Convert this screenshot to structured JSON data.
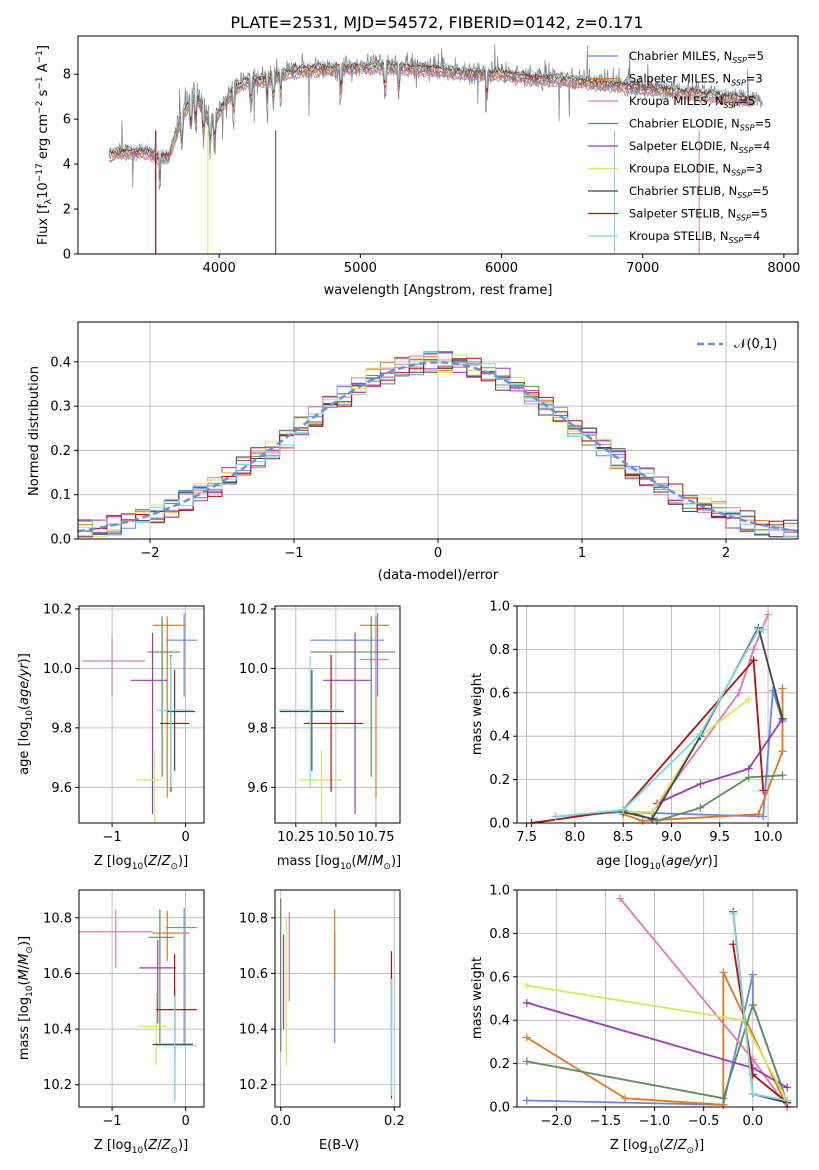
{
  "figure_title": "PLATE=2531, MJD=54572, FIBERID=0142, z=0.171",
  "colors": {
    "observed": "#808080",
    "series": [
      "#6688dd",
      "#dd7722",
      "#e07ab0",
      "#5e8a5e",
      "#9b3ab5",
      "#d7e65a",
      "#444444",
      "#aa1111",
      "#7fd8e0"
    ]
  },
  "chart_data": [
    {
      "id": "spectrum",
      "type": "line",
      "title": "PLATE=2531, MJD=54572, FIBERID=0142, z=0.171",
      "xlabel": "wavelength [Angstrom, rest frame]",
      "ylabel": "Flux [f_λ 10^-17 erg cm^-2 s^-1 A^-1]",
      "xlim": [
        3000,
        8100
      ],
      "ylim": [
        0,
        9.7
      ],
      "xticks": [
        4000,
        5000,
        6000,
        7000,
        8000
      ],
      "yticks": [
        0,
        2,
        4,
        6,
        8
      ],
      "grid": false,
      "legend_position": "right",
      "legend": [
        {
          "name": "Chabrier MILES",
          "nssp": "5"
        },
        {
          "name": "Salpeter MILES",
          "nssp": "3"
        },
        {
          "name": "Kroupa MILES",
          "nssp": "5"
        },
        {
          "name": "Chabrier ELODIE",
          "nssp": "5"
        },
        {
          "name": "Salpeter ELODIE",
          "nssp": "4"
        },
        {
          "name": "Kroupa ELODIE",
          "nssp": "3"
        },
        {
          "name": "Chabrier STELIB",
          "nssp": "5"
        },
        {
          "name": "Salpeter STELIB",
          "nssp": "5"
        },
        {
          "name": "Kroupa STELIB",
          "nssp": "4"
        }
      ],
      "observed_continuum": [
        [
          3220,
          4.5
        ],
        [
          3300,
          4.6
        ],
        [
          3400,
          4.5
        ],
        [
          3500,
          4.6
        ],
        [
          3560,
          4.4
        ],
        [
          3640,
          4.3
        ],
        [
          3700,
          5.6
        ],
        [
          3760,
          6.8
        ],
        [
          3840,
          7.4
        ],
        [
          3900,
          6.3
        ],
        [
          3950,
          5.9
        ],
        [
          4000,
          6.3
        ],
        [
          4100,
          7.4
        ],
        [
          4200,
          7.8
        ],
        [
          4300,
          7.8
        ],
        [
          4400,
          8.0
        ],
        [
          4500,
          8.2
        ],
        [
          4600,
          8.3
        ],
        [
          4800,
          8.3
        ],
        [
          5000,
          8.4
        ],
        [
          5200,
          8.5
        ],
        [
          5500,
          8.3
        ],
        [
          5800,
          8.1
        ],
        [
          6000,
          8.1
        ],
        [
          6200,
          7.9
        ],
        [
          6500,
          7.8
        ],
        [
          6800,
          7.6
        ],
        [
          7100,
          7.4
        ],
        [
          7400,
          7.2
        ],
        [
          7800,
          6.9
        ],
        [
          7850,
          6.8
        ]
      ],
      "model_continuum": [
        [
          3220,
          4.4
        ],
        [
          3300,
          4.5
        ],
        [
          3400,
          4.5
        ],
        [
          3500,
          4.5
        ],
        [
          3560,
          4.3
        ],
        [
          3640,
          4.3
        ],
        [
          3700,
          5.4
        ],
        [
          3760,
          6.4
        ],
        [
          3840,
          7.0
        ],
        [
          3900,
          6.2
        ],
        [
          3950,
          5.9
        ],
        [
          4000,
          6.3
        ],
        [
          4100,
          7.3
        ],
        [
          4200,
          7.7
        ],
        [
          4300,
          7.7
        ],
        [
          4400,
          7.9
        ],
        [
          4500,
          8.1
        ],
        [
          4600,
          8.2
        ],
        [
          4800,
          8.2
        ],
        [
          5000,
          8.3
        ],
        [
          5200,
          8.3
        ],
        [
          5500,
          8.2
        ],
        [
          5800,
          8.0
        ],
        [
          6000,
          8.0
        ],
        [
          6200,
          7.8
        ],
        [
          6500,
          7.7
        ],
        [
          6800,
          7.5
        ],
        [
          7100,
          7.3
        ],
        [
          7400,
          7.1
        ],
        [
          7800,
          6.8
        ],
        [
          7850,
          6.7
        ]
      ]
    },
    {
      "id": "residuals",
      "type": "area",
      "xlabel": "(data-model)/error",
      "ylabel": "Normed distribution",
      "xlim": [
        -2.5,
        2.5
      ],
      "ylim": [
        0,
        0.49
      ],
      "xticks": [
        -2,
        -1,
        0,
        1,
        2
      ],
      "yticks": [
        0.0,
        0.1,
        0.2,
        0.3,
        0.4
      ],
      "grid": true,
      "legend_position": "top-right",
      "reference_label": "𝒩(0,1)"
    },
    {
      "id": "age-vs-Z",
      "type": "scatter",
      "xlabel": "Z [log10(Z/Z⊙)]",
      "ylabel": "age [log10(age/yr)]",
      "xlim": [
        -1.45,
        0.25
      ],
      "ylim": [
        9.48,
        10.21
      ],
      "xticks": [
        -1,
        0
      ],
      "yticks": [
        9.6,
        9.8,
        10.0,
        10.2
      ],
      "grid": true,
      "points": [
        {
          "x": -0.02,
          "y": 10.095,
          "xerr": [
            0.25,
            0.18
          ],
          "yerr": [
            0.19,
            0.09
          ]
        },
        {
          "x": -0.25,
          "y": 10.145,
          "xerr": [
            0.2,
            0.25
          ],
          "yerr": [
            0.58,
            0.03
          ]
        },
        {
          "x": -1.0,
          "y": 10.025,
          "xerr": [
            0.4,
            0.45
          ],
          "yerr": [
            0.12,
            0.08
          ]
        },
        {
          "x": -0.32,
          "y": 10.055,
          "xerr": [
            0.2,
            0.25
          ],
          "yerr": [
            0.42,
            0.12
          ]
        },
        {
          "x": -0.45,
          "y": 9.96,
          "xerr": [
            0.3,
            0.2
          ],
          "yerr": [
            0.45,
            0.16
          ]
        },
        {
          "x": -0.42,
          "y": 9.625,
          "xerr": [
            0.25,
            0.08
          ],
          "yerr": [
            0.15,
            0.1
          ]
        },
        {
          "x": -0.15,
          "y": 9.855,
          "xerr": [
            0.1,
            0.28
          ],
          "yerr": [
            0.2,
            0.14
          ]
        },
        {
          "x": -0.2,
          "y": 9.815,
          "xerr": [
            0.15,
            0.25
          ],
          "yerr": [
            0.23,
            0.23
          ]
        },
        {
          "x": -0.2,
          "y": 9.86,
          "xerr": [
            0.2,
            0.3
          ],
          "yerr": [
            0.26,
            0.18
          ]
        }
      ]
    },
    {
      "id": "age-vs-mass",
      "type": "scatter",
      "xlabel": "mass [log10(M/M⊙)]",
      "ylabel": "",
      "xlim": [
        10.12,
        10.9
      ],
      "ylim": [
        9.48,
        10.21
      ],
      "xticks": [
        10.25,
        10.5,
        10.75
      ],
      "yticks": [
        9.6,
        9.8,
        10.0,
        10.2
      ],
      "grid": true,
      "points": [
        {
          "x": 10.76,
          "y": 10.095,
          "xerr": [
            0.42,
            0.04
          ],
          "yerr": [
            0.19,
            0.09
          ]
        },
        {
          "x": 10.75,
          "y": 10.145,
          "xerr": [
            0.1,
            0.08
          ],
          "yerr": [
            0.58,
            0.03
          ]
        },
        {
          "x": 10.75,
          "y": 10.03,
          "xerr": [
            0.1,
            0.08
          ],
          "yerr": [
            0.12,
            0.08
          ]
        },
        {
          "x": 10.72,
          "y": 10.055,
          "xerr": [
            0.38,
            0.15
          ],
          "yerr": [
            0.42,
            0.12
          ]
        },
        {
          "x": 10.62,
          "y": 9.96,
          "xerr": [
            0.2,
            0.1
          ],
          "yerr": [
            0.45,
            0.16
          ]
        },
        {
          "x": 10.41,
          "y": 9.625,
          "xerr": [
            0.14,
            0.13
          ],
          "yerr": [
            0.15,
            0.1
          ]
        },
        {
          "x": 10.35,
          "y": 9.855,
          "xerr": [
            0.2,
            0.2
          ],
          "yerr": [
            0.2,
            0.14
          ]
        },
        {
          "x": 10.47,
          "y": 9.815,
          "xerr": [
            0.17,
            0.2
          ],
          "yerr": [
            0.23,
            0.23
          ]
        },
        {
          "x": 10.34,
          "y": 9.86,
          "xerr": [
            0.2,
            0.2
          ],
          "yerr": [
            0.26,
            0.18
          ]
        }
      ]
    },
    {
      "id": "weight-vs-age",
      "type": "line",
      "xlabel": "age [log10(age/yr)]",
      "ylabel": "mass weight",
      "xlim": [
        7.4,
        10.3
      ],
      "ylim": [
        0,
        1.0
      ],
      "xticks": [
        7.5,
        8.0,
        8.5,
        9.0,
        9.5,
        10.0
      ],
      "yticks": [
        0.0,
        0.2,
        0.4,
        0.6,
        0.8,
        1.0
      ],
      "grid": true,
      "series": [
        {
          "x": [
            7.8,
            8.5,
            9.95,
            10.05,
            10.15
          ],
          "y": [
            0.03,
            0.05,
            0.03,
            0.61,
            0.47
          ]
        },
        {
          "x": [
            8.5,
            8.7,
            9.9,
            10.15,
            10.15
          ],
          "y": [
            0.04,
            0.01,
            0.04,
            0.33,
            0.62
          ]
        },
        {
          "x": [
            8.5,
            8.8,
            9.7,
            9.85,
            10.0
          ],
          "y": [
            0.05,
            0.05,
            0.6,
            0.8,
            0.96
          ]
        },
        {
          "x": [
            8.5,
            8.85,
            9.3,
            9.8,
            10.15
          ],
          "y": [
            0.06,
            0.01,
            0.07,
            0.21,
            0.22
          ]
        },
        {
          "x": [
            8.85,
            9.3,
            9.8,
            10.15
          ],
          "y": [
            0.09,
            0.18,
            0.25,
            0.48
          ]
        },
        {
          "x": [
            8.5,
            8.8,
            9.3,
            9.8
          ],
          "y": [
            0.05,
            0.05,
            0.4,
            0.57
          ]
        },
        {
          "x": [
            8.5,
            8.8,
            9.3,
            9.9,
            10.15
          ],
          "y": [
            0.05,
            0.02,
            0.4,
            0.9,
            0.48
          ]
        },
        {
          "x": [
            7.55,
            8.5,
            9.85,
            9.95
          ],
          "y": [
            0.0,
            0.06,
            0.75,
            0.15
          ]
        },
        {
          "x": [
            7.8,
            8.5,
            9.3,
            9.9,
            9.95
          ],
          "y": [
            0.03,
            0.06,
            0.41,
            0.89,
            0.89
          ]
        }
      ]
    },
    {
      "id": "mass-vs-Z",
      "type": "scatter",
      "xlabel": "Z [log10(Z/Z⊙)]",
      "ylabel": "mass [log10(M/M⊙)]",
      "xlim": [
        -1.45,
        0.25
      ],
      "ylim": [
        10.12,
        10.9
      ],
      "xticks": [
        -1,
        0
      ],
      "yticks": [
        10.2,
        10.4,
        10.6,
        10.8
      ],
      "grid": true,
      "points": [
        {
          "x": -0.02,
          "y": 10.765,
          "xerr": [
            0.25,
            0.18
          ],
          "yerr": [
            0.42,
            0.07
          ]
        },
        {
          "x": -0.25,
          "y": 10.745,
          "xerr": [
            0.2,
            0.3
          ],
          "yerr": [
            0.1,
            0.08
          ]
        },
        {
          "x": -0.95,
          "y": 10.75,
          "xerr": [
            0.5,
            0.5
          ],
          "yerr": [
            0.13,
            0.08
          ]
        },
        {
          "x": -0.35,
          "y": 10.73,
          "xerr": [
            0.15,
            0.2
          ],
          "yerr": [
            0.38,
            0.1
          ]
        },
        {
          "x": -0.38,
          "y": 10.62,
          "xerr": [
            0.25,
            0.25
          ],
          "yerr": [
            0.2,
            0.1
          ]
        },
        {
          "x": -0.4,
          "y": 10.41,
          "xerr": [
            0.25,
            0.15
          ],
          "yerr": [
            0.14,
            0.12
          ]
        },
        {
          "x": -0.15,
          "y": 10.345,
          "xerr": [
            0.3,
            0.25
          ],
          "yerr": [
            0.2,
            0.2
          ]
        },
        {
          "x": -0.15,
          "y": 10.47,
          "xerr": [
            0.25,
            0.3
          ],
          "yerr": [
            0.17,
            0.2
          ]
        },
        {
          "x": -0.15,
          "y": 10.34,
          "xerr": [
            0.25,
            0.3
          ],
          "yerr": [
            0.2,
            0.18
          ]
        }
      ]
    },
    {
      "id": "mass-vs-EBV",
      "type": "scatter",
      "xlabel": "E(B-V)",
      "ylabel": "",
      "xlim": [
        -0.01,
        0.21
      ],
      "ylim": [
        10.12,
        10.9
      ],
      "xticks": [
        0.0,
        0.2
      ],
      "yticks": [
        10.2,
        10.4,
        10.6,
        10.8
      ],
      "grid": true,
      "points": [
        {
          "x": 0.095,
          "y": 10.6,
          "xerr": [
            0,
            0
          ],
          "yerr": [
            0.25,
            0.15
          ]
        },
        {
          "x": 0.095,
          "y": 10.7,
          "xerr": [
            0,
            0
          ],
          "yerr": [
            0.13,
            0.13
          ]
        },
        {
          "x": 0.015,
          "y": 10.6,
          "xerr": [
            0,
            0
          ],
          "yerr": [
            0.1,
            0.22
          ]
        },
        {
          "x": 0.0,
          "y": 10.72,
          "xerr": [
            0,
            0
          ],
          "yerr": [
            0.4,
            0.15
          ]
        },
        {
          "x": 0.005,
          "y": 10.57,
          "xerr": [
            0,
            0
          ],
          "yerr": [
            0.17,
            0.17
          ]
        },
        {
          "x": 0.01,
          "y": 10.55,
          "xerr": [
            0,
            0
          ],
          "yerr": [
            0.28,
            0.25
          ]
        },
        {
          "x": 0.195,
          "y": 10.35,
          "xerr": [
            0,
            0
          ],
          "yerr": [
            0.2,
            0.25
          ]
        },
        {
          "x": 0.195,
          "y": 10.58,
          "xerr": [
            0,
            0
          ],
          "yerr": [
            0.18,
            0.1
          ]
        },
        {
          "x": 0.195,
          "y": 10.36,
          "xerr": [
            0,
            0
          ],
          "yerr": [
            0.2,
            0.22
          ]
        }
      ]
    },
    {
      "id": "weight-vs-Z",
      "type": "line",
      "xlabel": "Z [log10(Z/Z⊙)]",
      "ylabel": "mass weight",
      "xlim": [
        -2.4,
        0.45
      ],
      "ylim": [
        0,
        1.0
      ],
      "xticks": [
        -2.0,
        -1.5,
        -1.0,
        -0.5,
        0.0
      ],
      "yticks": [
        0.0,
        0.2,
        0.4,
        0.6,
        0.8,
        1.0
      ],
      "grid": true,
      "series": [
        {
          "x": [
            -2.3,
            -0.3,
            0.0,
            0.0,
            0.35
          ],
          "y": [
            0.03,
            0.01,
            0.61,
            0.47,
            0.02
          ]
        },
        {
          "x": [
            -2.3,
            -1.3,
            -0.3,
            -0.3,
            0.35
          ],
          "y": [
            0.32,
            0.04,
            0.01,
            0.62,
            0.0
          ]
        },
        {
          "x": [
            -1.35,
            0.0,
            0.35
          ],
          "y": [
            0.96,
            0.22,
            0.0
          ]
        },
        {
          "x": [
            -2.3,
            -0.3,
            0.0,
            0.35
          ],
          "y": [
            0.21,
            0.04,
            0.47,
            0.02
          ]
        },
        {
          "x": [
            -2.3,
            0.0,
            0.35
          ],
          "y": [
            0.48,
            0.18,
            0.09
          ]
        },
        {
          "x": [
            -2.3,
            -0.1,
            0.35
          ],
          "y": [
            0.56,
            0.4,
            0.03
          ]
        },
        {
          "x": [
            -0.2,
            0.0,
            0.35
          ],
          "y": [
            0.9,
            0.06,
            0.02
          ]
        },
        {
          "x": [
            -0.2,
            0.0,
            0.35
          ],
          "y": [
            0.75,
            0.15,
            0.02
          ]
        },
        {
          "x": [
            -0.2,
            0.0,
            0.35
          ],
          "y": [
            0.89,
            0.06,
            0.03
          ]
        }
      ]
    }
  ]
}
